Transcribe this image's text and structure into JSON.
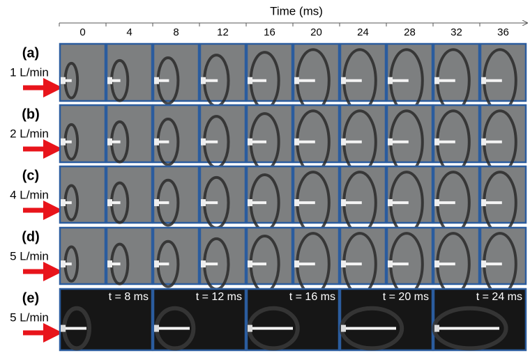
{
  "time_axis": {
    "title": "Time (ms)",
    "ticks": [
      "0",
      "4",
      "8",
      "12",
      "16",
      "20",
      "24",
      "28",
      "32",
      "36"
    ]
  },
  "rows": [
    {
      "label": "(a)",
      "flow": "1 L/min"
    },
    {
      "label": "(b)",
      "flow": "2 L/min"
    },
    {
      "label": "(c)",
      "flow": "4 L/min"
    },
    {
      "label": "(d)",
      "flow": "5 L/min"
    },
    {
      "label": "(e)",
      "flow": "5 L/min",
      "frame_labels": [
        "t = 8 ms",
        "t = 12 ms",
        "t = 16 ms",
        "t = 20 ms",
        "t = 24 ms"
      ]
    }
  ]
}
